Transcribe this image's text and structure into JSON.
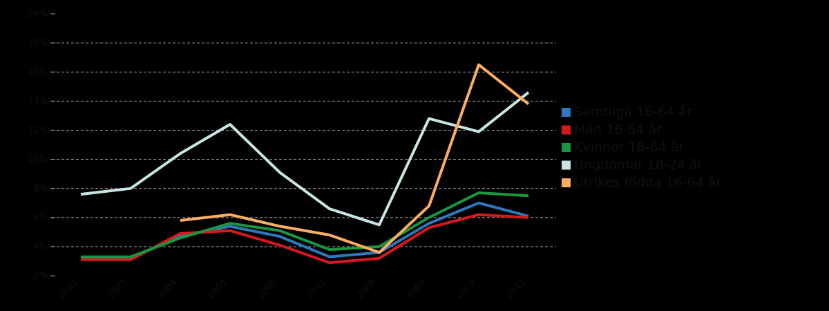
{
  "chart_data": {
    "type": "line",
    "title": "",
    "xlabel": "",
    "ylabel": "",
    "categories": [
      "2002",
      "2003",
      "2004",
      "2005",
      "2006",
      "2007",
      "2008",
      "2009",
      "2010",
      "2011"
    ],
    "ylim": [
      2,
      20
    ],
    "yticks": [
      2,
      4,
      6,
      8,
      10,
      12,
      14,
      16,
      18,
      20
    ],
    "ytick_labels": [
      "2%",
      "4%",
      "6%",
      "8%",
      "10%",
      "12%",
      "14%",
      "16%",
      "18%",
      "20%"
    ],
    "grid": true,
    "legend_position": "right",
    "background": "#000000",
    "series": [
      {
        "name": "Samtliga 16-64 år",
        "color": "#2e78bd",
        "values": [
          3.2,
          3.2,
          4.7,
          5.4,
          4.7,
          3.3,
          3.6,
          5.6,
          7.0,
          6.1
        ]
      },
      {
        "name": "Män 16-64 år",
        "color": "#d7191c",
        "values": [
          3.1,
          3.1,
          4.9,
          5.1,
          4.1,
          2.9,
          3.2,
          5.3,
          6.2,
          6.0
        ]
      },
      {
        "name": "Kvinnor 16-64 år",
        "color": "#1a9641",
        "values": [
          3.3,
          3.3,
          4.6,
          5.6,
          5.1,
          3.8,
          4.0,
          6.0,
          7.7,
          7.5
        ]
      },
      {
        "name": "Ungdomar 18-24 år",
        "color": "#c7e6e3",
        "values": [
          7.6,
          8.0,
          10.4,
          12.4,
          9.1,
          6.6,
          5.5,
          12.8,
          11.9,
          14.6
        ]
      },
      {
        "name": "Utrikes födda 16-64 år",
        "color": "#fdae61",
        "values": [
          null,
          null,
          5.8,
          6.2,
          5.4,
          4.8,
          3.6,
          6.8,
          16.5,
          13.8
        ]
      }
    ]
  }
}
